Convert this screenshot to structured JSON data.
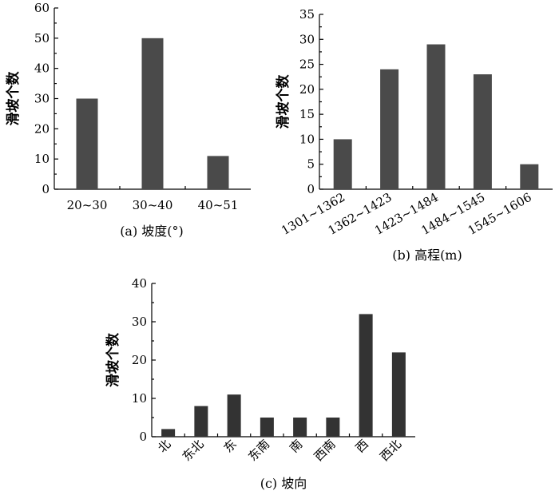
{
  "chart_data": [
    {
      "type": "bar",
      "categories": [
        "20~30",
        "30~40",
        "40~51"
      ],
      "values": [
        30,
        50,
        11
      ],
      "ylabel": "滑坡个数",
      "caption": "(a) 坡度(°)",
      "ylim": [
        0,
        60
      ],
      "yticks": [
        "0",
        "10",
        "20",
        "30",
        "40",
        "50",
        "60"
      ],
      "bar_color": "#4a4a4a",
      "tick_rotation": 0
    },
    {
      "type": "bar",
      "categories": [
        "1301~1362",
        "1362~1423",
        "1423~1484",
        "1484~1545",
        "1545~1606"
      ],
      "values": [
        10,
        24,
        29,
        23,
        5
      ],
      "ylabel": "滑坡个数",
      "caption": "(b) 高程(m)",
      "ylim": [
        0,
        35
      ],
      "yticks": [
        "0",
        "5",
        "10",
        "15",
        "20",
        "25",
        "30",
        "35"
      ],
      "bar_color": "#4a4a4a",
      "tick_rotation": -30
    },
    {
      "type": "bar",
      "categories": [
        "北",
        "东北",
        "东",
        "东南",
        "南",
        "西南",
        "西",
        "西北"
      ],
      "values": [
        2,
        8,
        11,
        5,
        5,
        5,
        32,
        22
      ],
      "ylabel": "滑坡个数",
      "caption": "(c) 坡向",
      "ylim": [
        0,
        40
      ],
      "yticks": [
        "0",
        "10",
        "20",
        "30",
        "40"
      ],
      "bar_color": "#333333",
      "tick_rotation": -45
    }
  ]
}
